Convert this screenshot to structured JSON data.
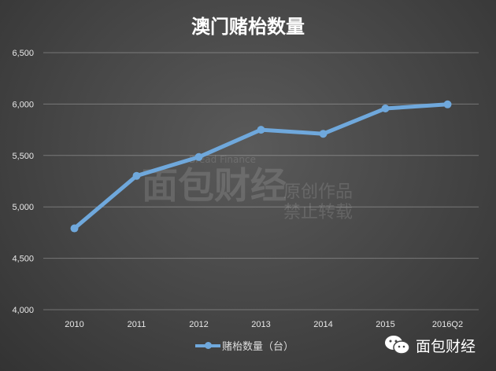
{
  "chart_data": {
    "type": "line",
    "title": "澳门赌枱数量",
    "categories": [
      "2010",
      "2011",
      "2012",
      "2013",
      "2014",
      "2015",
      "2016Q2"
    ],
    "series": [
      {
        "name": "赌枱数量（台）",
        "values": [
          4791,
          5302,
          5485,
          5750,
          5711,
          5957,
          5997
        ],
        "color": "#6fa8dc"
      }
    ],
    "ylim": [
      4000,
      6500
    ],
    "yticks": [
      "4,000",
      "4,500",
      "5,000",
      "5,500",
      "6,000",
      "6,500"
    ],
    "grid": true,
    "legend": "bottom"
  },
  "watermark": {
    "logo": "面包财经",
    "english": "Bread Finance",
    "line1": "原创作品",
    "line2": "禁止转载"
  },
  "brand": {
    "icon": "wechat-icon",
    "name": "面包财经"
  }
}
